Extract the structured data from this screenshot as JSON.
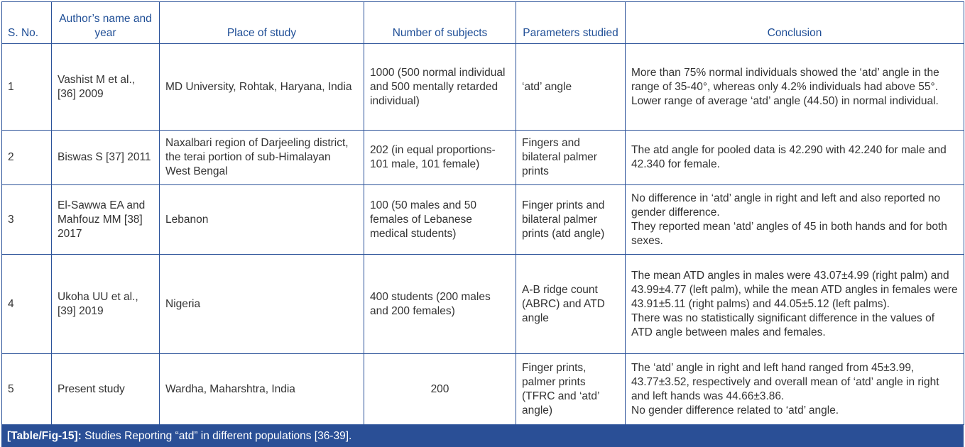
{
  "table": {
    "headers": [
      "S. No.",
      "Author’s name and year",
      "Place of study",
      "Number of subjects",
      "Parameters studied",
      "Conclusion"
    ],
    "rows": [
      {
        "sno": "1",
        "author": "Vashist M et al., [36] 2009",
        "place": "MD University, Rohtak, Haryana, India",
        "subjects": "1000 (500 normal individual and 500 mentally retarded individual)",
        "parameters": "‘atd’ angle",
        "conclusion": [
          "More than 75% normal individuals showed the ‘atd’ angle in the range of 35-40°, whereas only 4.2% individuals had above 55°.",
          "Lower range of average ‘atd’ angle (44.50) in normal individual."
        ]
      },
      {
        "sno": "2",
        "author": "Biswas S [37] 2011",
        "place": "Naxalbari region of Darjeeling district, the terai portion of sub-Himalayan West Bengal",
        "subjects": "202 (in equal proportions-101 male, 101 female)",
        "parameters": "Fingers and bilateral palmer prints",
        "conclusion": [
          "The atd angle for pooled data is 42.290 with 42.240 for male and 42.340 for female."
        ]
      },
      {
        "sno": "3",
        "author": "El-Sawwa EA and Mahfouz MM [38] 2017",
        "place": "Lebanon",
        "subjects": "100 (50 males and 50 females of Lebanese medical students)",
        "parameters": "Finger prints and bilateral palmer prints (atd angle)",
        "conclusion": [
          "No difference in ‘atd’ angle in right and left and also reported no gender difference.",
          "They reported mean ‘atd’ angles of 45 in both hands and for both sexes."
        ]
      },
      {
        "sno": "4",
        "author": "Ukoha UU et al., [39] 2019",
        "place": "Nigeria",
        "subjects": "400 students (200 males and 200 females)",
        "parameters": "A-B ridge count (ABRC) and ATD angle",
        "conclusion": [
          "The mean ATD angles in males were 43.07±4.99 (right palm) and 43.99±4.77 (left palm), while the mean ATD angles in females were 43.91±5.11 (right palms) and 44.05±5.12 (left palms).",
          "There was no statistically significant difference in the values of ATD angle between males and females."
        ]
      },
      {
        "sno": "5",
        "author": "Present study",
        "place": "Wardha, Maharshtra, India",
        "subjects": "200",
        "parameters": "Finger prints, palmer prints (TFRC and ‘atd’ angle)",
        "conclusion": [
          "The ‘atd’ angle in right and left hand ranged from 45±3.99, 43.77±3.52, respectively and overall mean of ‘atd’ angle in right and left hands was 44.66±3.86.",
          "No gender difference related to ‘atd’ angle."
        ]
      }
    ]
  },
  "caption": {
    "label": "[Table/Fig-15]:",
    "text": " Studies Reporting “atd” in different populations [36-39]."
  },
  "colors": {
    "border": "#2b5299",
    "header_text": "#1f4e96",
    "caption_bg": "#2a4f96"
  }
}
